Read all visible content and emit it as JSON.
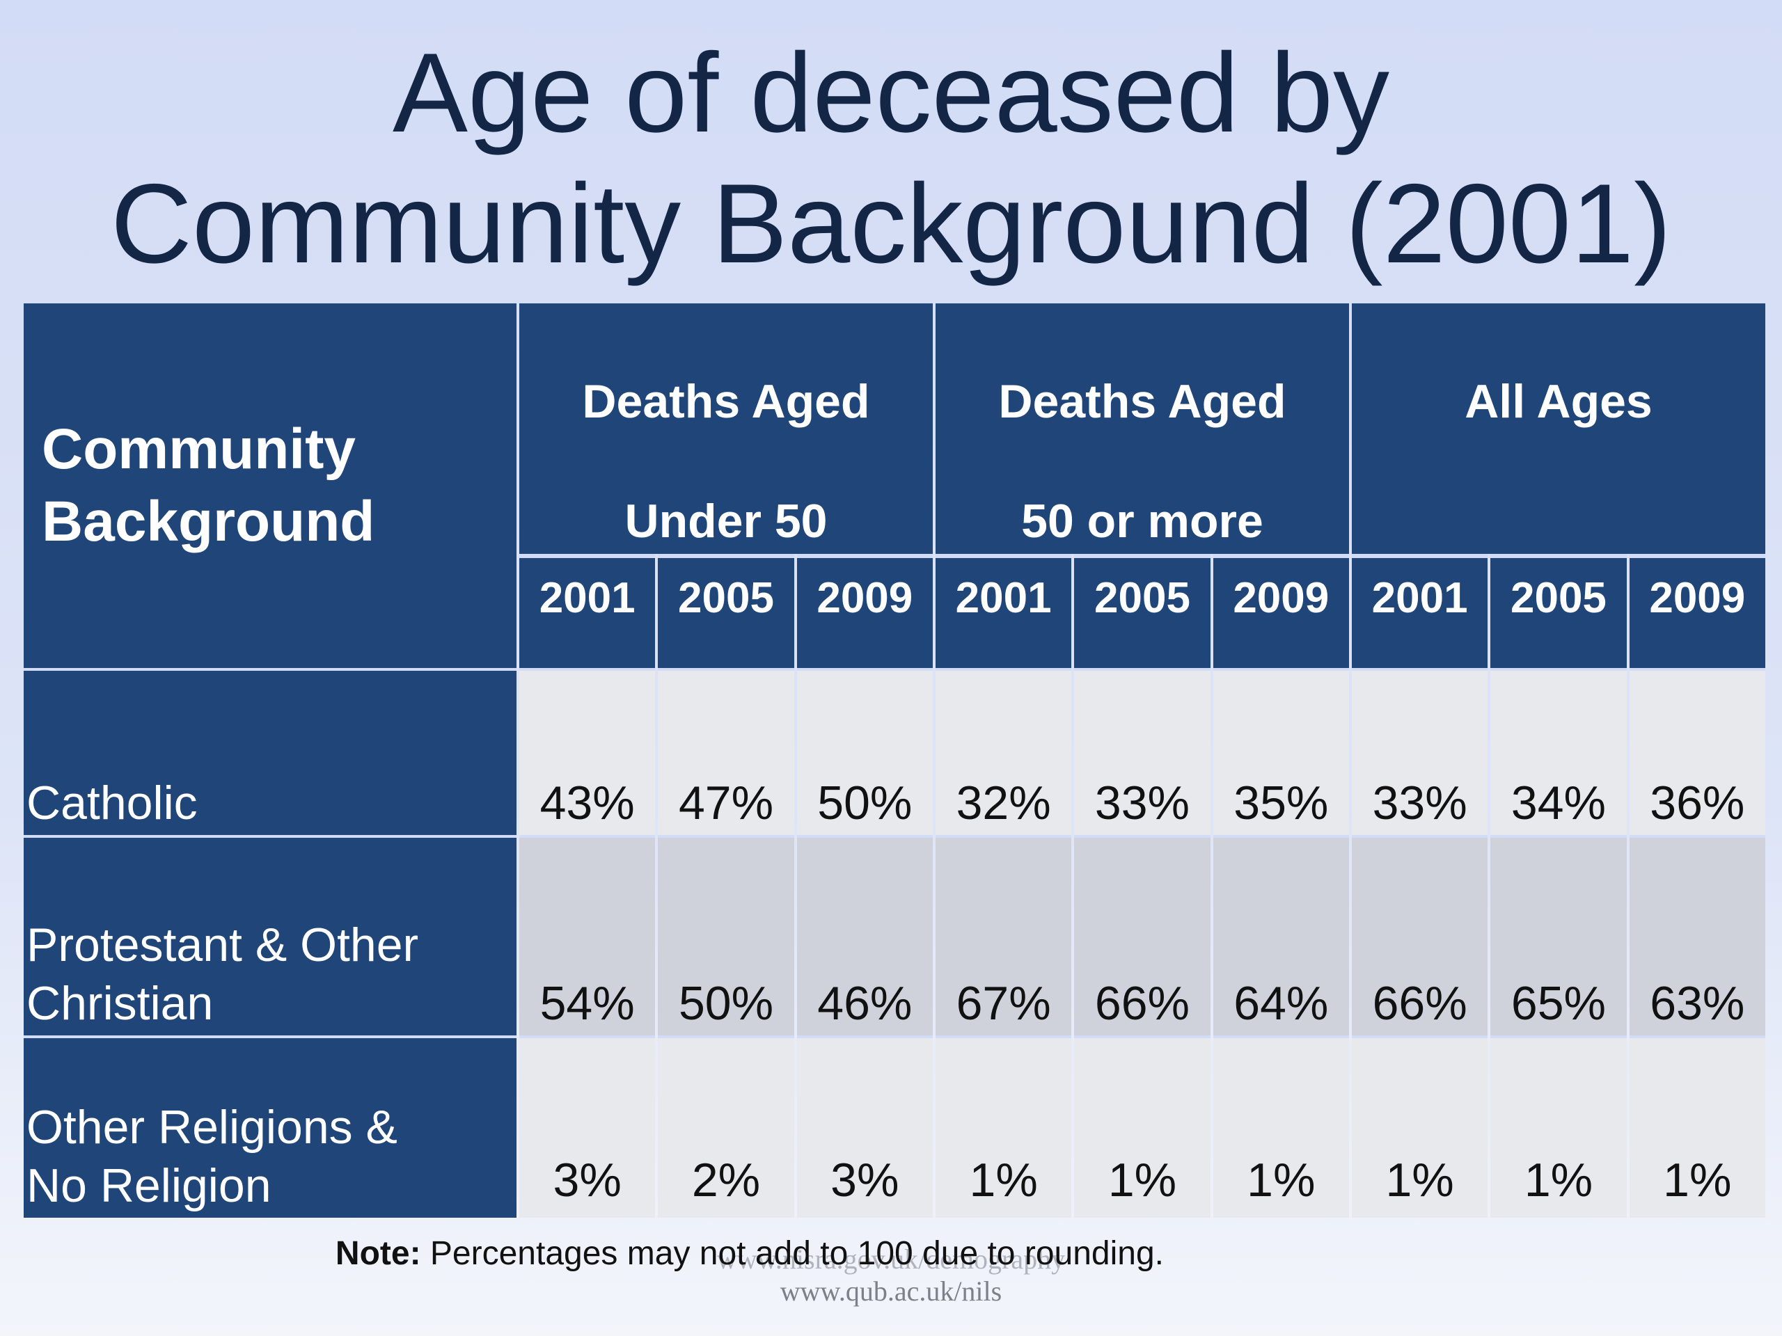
{
  "title": {
    "line1": "Age of deceased by",
    "line2": "Community Background (2001)"
  },
  "table": {
    "corner_label": [
      "Community",
      "Background"
    ],
    "groups": [
      {
        "line1": "Deaths Aged",
        "line2": "Under 50"
      },
      {
        "line1": "Deaths Aged",
        "line2": "50 or more"
      },
      {
        "line1": "All Ages",
        "line2": ""
      }
    ],
    "years": [
      "2001",
      "2005",
      "2009",
      "2001",
      "2005",
      "2009",
      "2001",
      "2005",
      "2009"
    ],
    "rows": [
      {
        "label": [
          "Catholic",
          ""
        ],
        "values": [
          "43%",
          "47%",
          "50%",
          "32%",
          "33%",
          "35%",
          "33%",
          "34%",
          "36%"
        ]
      },
      {
        "label": [
          "Protestant & Other",
          "Christian"
        ],
        "values": [
          "54%",
          "50%",
          "46%",
          "67%",
          "66%",
          "64%",
          "66%",
          "65%",
          "63%"
        ]
      },
      {
        "label": [
          "Other Religions &",
          "No Religion"
        ],
        "values": [
          "3%",
          "2%",
          "3%",
          "1%",
          "1%",
          "1%",
          "1%",
          "1%",
          "1%"
        ]
      }
    ]
  },
  "note": {
    "label": "Note:",
    "text": " Percentages may not add to 100 due to rounding."
  },
  "watermark": {
    "line1": "www.nisra.gov.uk/demography",
    "line2": "www.qub.ac.uk/nils"
  },
  "colors": {
    "header_bg": "#1f4579",
    "background": "#d3dcf6",
    "row_light": "#e8e9ec",
    "row_dark": "#cfd2db",
    "title_text": "#142646"
  }
}
